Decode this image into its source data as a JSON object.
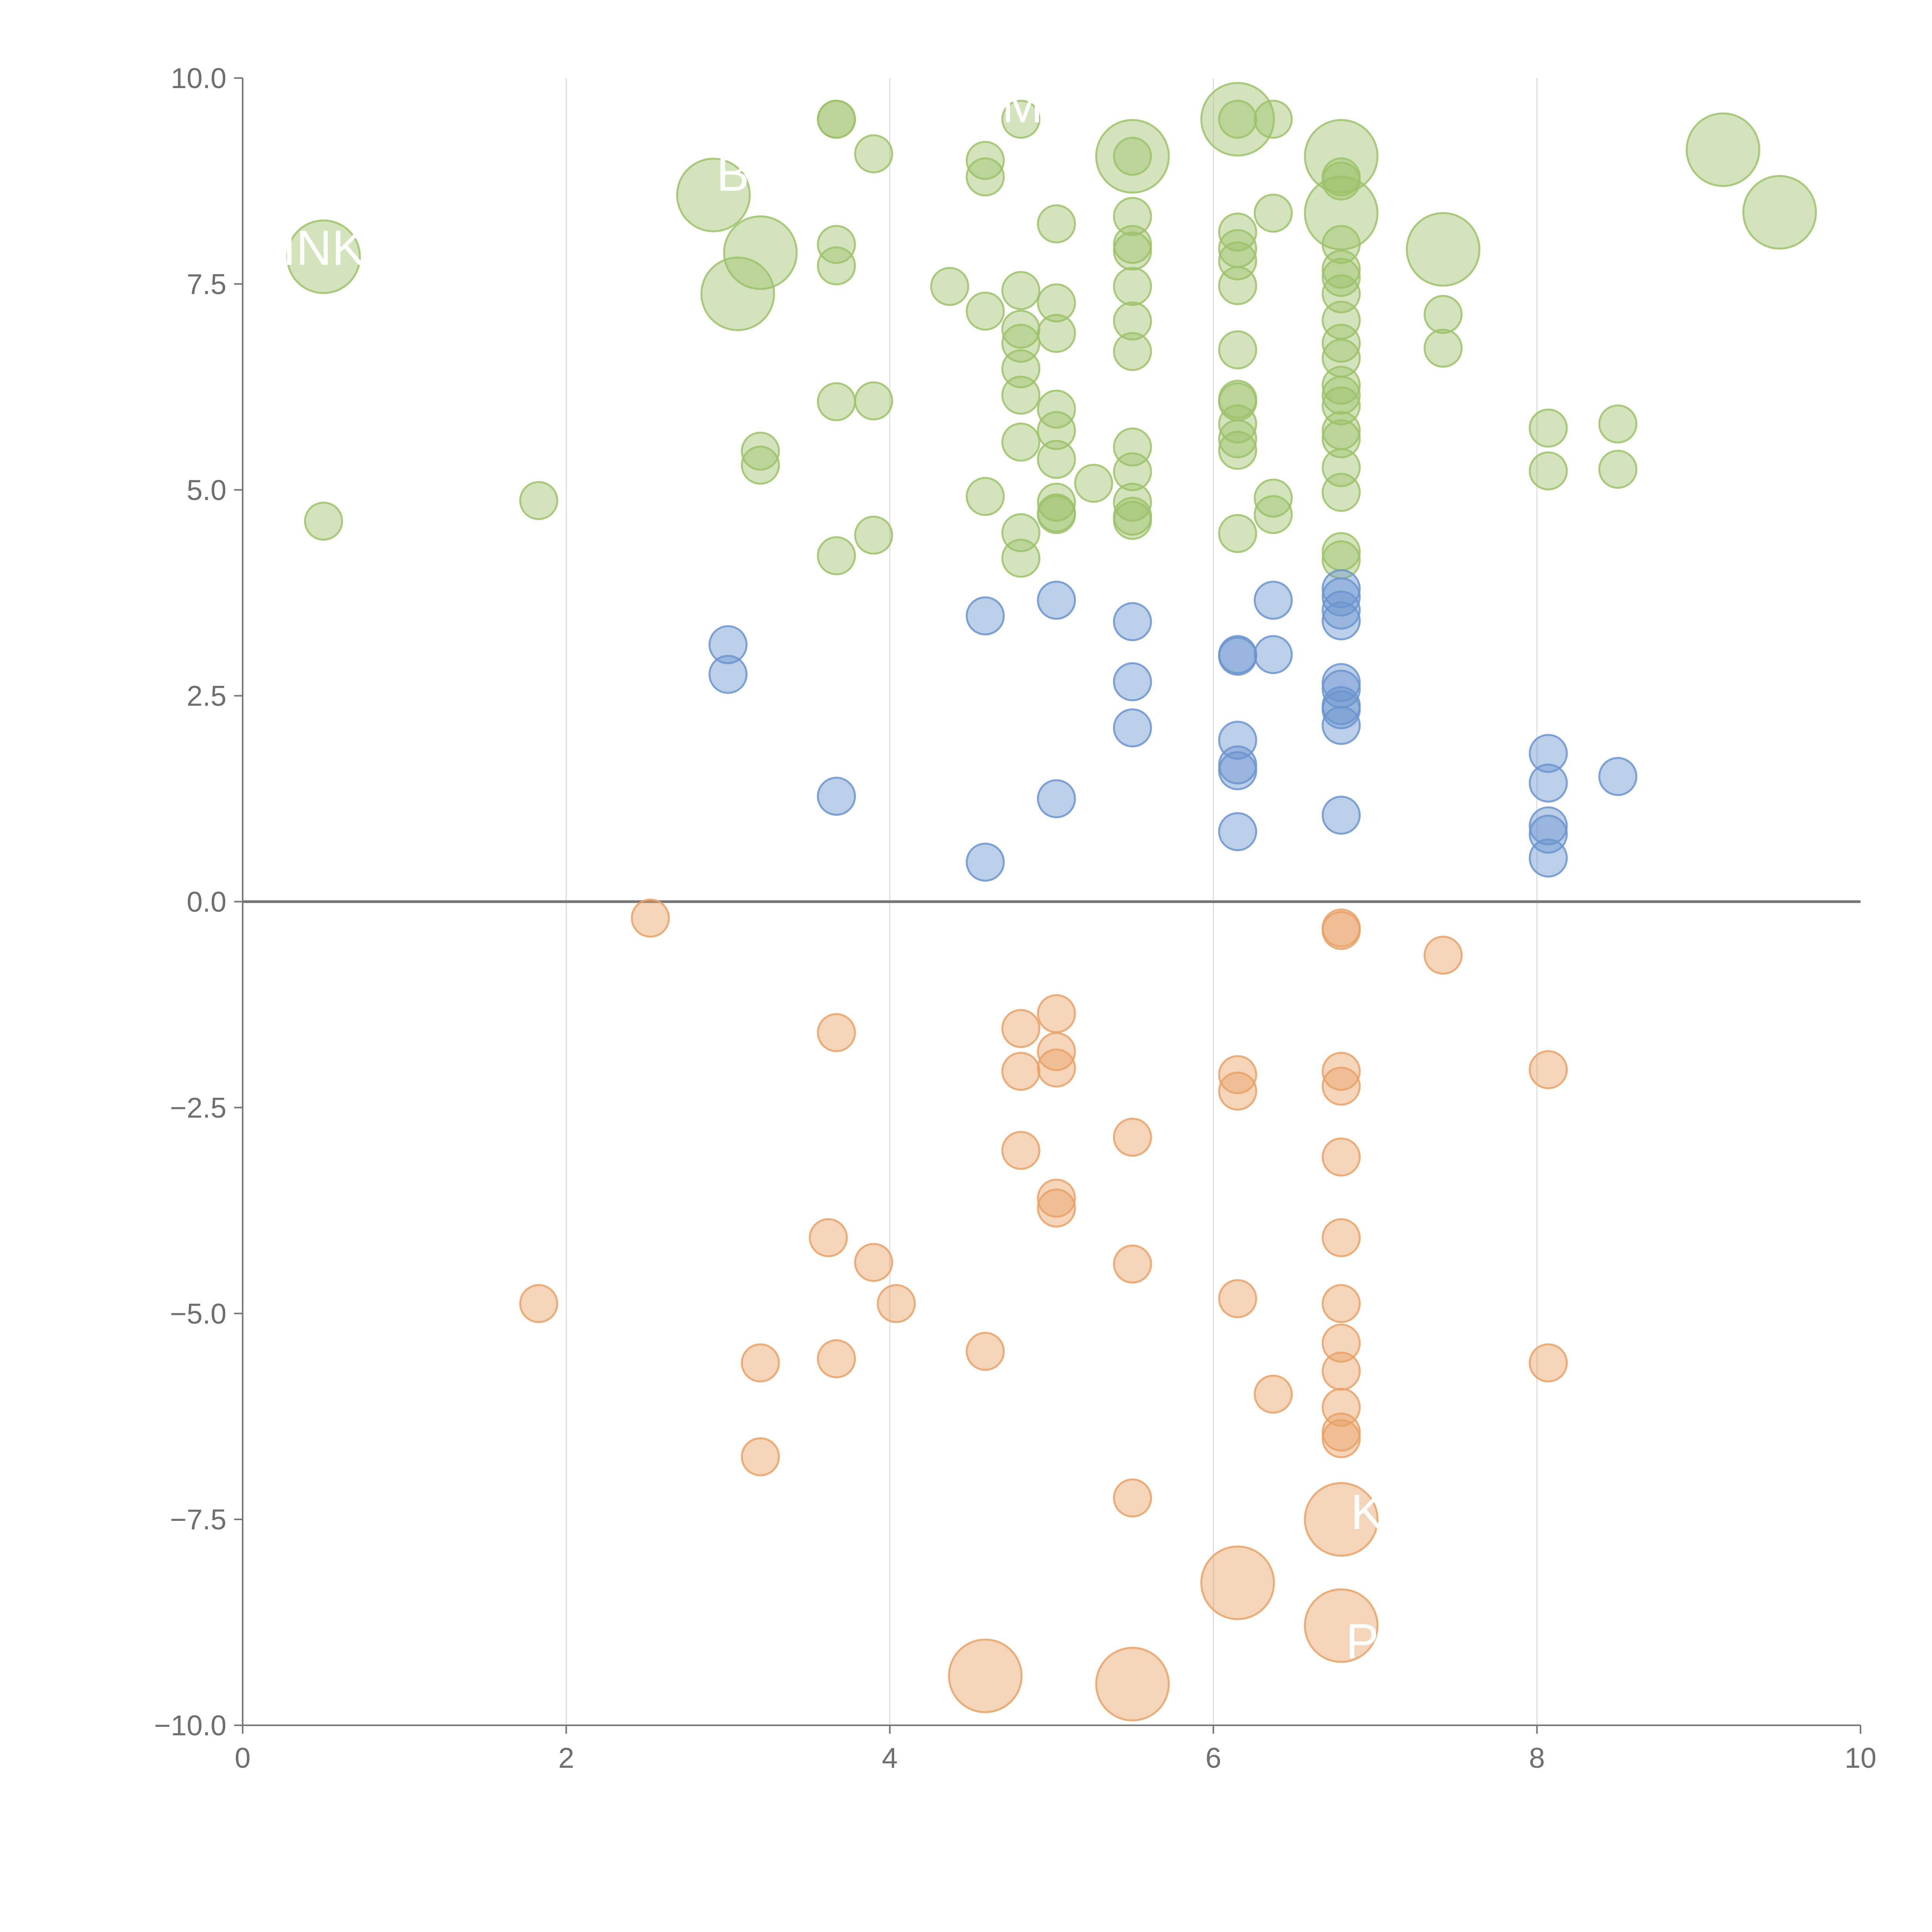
{
  "chart_data": {
    "type": "scatter",
    "title": "",
    "xlabel": "",
    "ylabel": "",
    "xlim": [
      0,
      10
    ],
    "ylim": [
      -10,
      10
    ],
    "x_ticks": [
      0,
      2,
      4,
      6,
      8,
      10
    ],
    "x_tick_labels": [
      "0",
      "2",
      "4",
      "6",
      "8",
      "10"
    ],
    "y_ticks": [
      10,
      7.5,
      5,
      2.5,
      0,
      -2.5,
      -5,
      -7.5,
      -10
    ],
    "y_tick_labels": [
      "10.0",
      "7.5",
      "5.0",
      "2.5",
      "0.0",
      "−2.5",
      "−5.0",
      "−7.5",
      "−10.0"
    ],
    "vertical_grid": true,
    "horizontal_grid": false,
    "zero_line": true,
    "colors": {
      "green": "#9dc26a",
      "blue": "#6b94cf",
      "orange": "#e9a167",
      "axis": "#777777",
      "grid": "#dddddd"
    },
    "series": [
      {
        "name": "green",
        "color": "#9dc26a",
        "points": [
          {
            "x": 3.67,
            "y": 9.5,
            "size": 1
          },
          {
            "x": 3.67,
            "y": 9.5,
            "size": 1
          },
          {
            "x": 4.81,
            "y": 9.5,
            "size": 1
          },
          {
            "x": 3.9,
            "y": 9.08,
            "size": 1
          },
          {
            "x": 4.59,
            "y": 9.0,
            "size": 1
          },
          {
            "x": 4.59,
            "y": 8.8,
            "size": 1
          },
          {
            "x": 5.5,
            "y": 9.05,
            "size": 3
          },
          {
            "x": 5.5,
            "y": 9.05,
            "size": 1
          },
          {
            "x": 6.15,
            "y": 9.5,
            "size": 3
          },
          {
            "x": 6.15,
            "y": 9.5,
            "size": 1
          },
          {
            "x": 6.37,
            "y": 9.5,
            "size": 1
          },
          {
            "x": 6.79,
            "y": 9.05,
            "size": 3
          },
          {
            "x": 6.79,
            "y": 8.36,
            "size": 3
          },
          {
            "x": 6.79,
            "y": 8.8,
            "size": 1
          },
          {
            "x": 6.79,
            "y": 8.75,
            "size": 1
          },
          {
            "x": 7.42,
            "y": 7.92,
            "size": 3
          },
          {
            "x": 9.15,
            "y": 9.13,
            "size": 3
          },
          {
            "x": 9.5,
            "y": 8.37,
            "size": 3
          },
          {
            "x": 0.5,
            "y": 7.83,
            "size": 3
          },
          {
            "x": 2.91,
            "y": 8.58,
            "size": 3
          },
          {
            "x": 3.2,
            "y": 7.88,
            "size": 3
          },
          {
            "x": 3.06,
            "y": 7.38,
            "size": 3
          },
          {
            "x": 3.67,
            "y": 7.98,
            "size": 1
          },
          {
            "x": 3.67,
            "y": 7.72,
            "size": 1
          },
          {
            "x": 5.03,
            "y": 8.23,
            "size": 1
          },
          {
            "x": 5.5,
            "y": 8.32,
            "size": 1
          },
          {
            "x": 5.5,
            "y": 7.98,
            "size": 1
          },
          {
            "x": 5.5,
            "y": 7.9,
            "size": 1
          },
          {
            "x": 6.15,
            "y": 8.13,
            "size": 1
          },
          {
            "x": 6.15,
            "y": 7.93,
            "size": 1
          },
          {
            "x": 6.15,
            "y": 7.78,
            "size": 1
          },
          {
            "x": 6.37,
            "y": 8.36,
            "size": 1
          },
          {
            "x": 6.79,
            "y": 7.98,
            "size": 1
          },
          {
            "x": 6.79,
            "y": 7.68,
            "size": 1
          },
          {
            "x": 6.79,
            "y": 7.58,
            "size": 1
          },
          {
            "x": 6.79,
            "y": 7.38,
            "size": 1
          },
          {
            "x": 6.79,
            "y": 7.06,
            "size": 1
          },
          {
            "x": 6.79,
            "y": 6.78,
            "size": 1
          },
          {
            "x": 6.79,
            "y": 6.6,
            "size": 1
          },
          {
            "x": 6.79,
            "y": 6.27,
            "size": 1
          },
          {
            "x": 6.79,
            "y": 6.15,
            "size": 1
          },
          {
            "x": 6.79,
            "y": 6.02,
            "size": 1
          },
          {
            "x": 6.79,
            "y": 5.72,
            "size": 1
          },
          {
            "x": 6.79,
            "y": 5.62,
            "size": 1
          },
          {
            "x": 6.79,
            "y": 5.27,
            "size": 1
          },
          {
            "x": 6.79,
            "y": 4.97,
            "size": 1
          },
          {
            "x": 6.79,
            "y": 4.25,
            "size": 1
          },
          {
            "x": 6.79,
            "y": 4.15,
            "size": 1
          },
          {
            "x": 4.37,
            "y": 7.47,
            "size": 1
          },
          {
            "x": 4.59,
            "y": 7.17,
            "size": 1
          },
          {
            "x": 4.81,
            "y": 7.42,
            "size": 1
          },
          {
            "x": 4.81,
            "y": 6.95,
            "size": 1
          },
          {
            "x": 4.81,
            "y": 6.78,
            "size": 1
          },
          {
            "x": 4.81,
            "y": 6.47,
            "size": 1
          },
          {
            "x": 4.81,
            "y": 6.15,
            "size": 1
          },
          {
            "x": 4.81,
            "y": 5.58,
            "size": 1
          },
          {
            "x": 4.81,
            "y": 4.48,
            "size": 1
          },
          {
            "x": 4.81,
            "y": 4.17,
            "size": 1
          },
          {
            "x": 5.03,
            "y": 7.27,
            "size": 1
          },
          {
            "x": 5.03,
            "y": 6.9,
            "size": 1
          },
          {
            "x": 5.03,
            "y": 5.98,
            "size": 1
          },
          {
            "x": 5.03,
            "y": 5.72,
            "size": 1
          },
          {
            "x": 5.03,
            "y": 5.37,
            "size": 1
          },
          {
            "x": 5.03,
            "y": 4.85,
            "size": 1
          },
          {
            "x": 5.03,
            "y": 4.72,
            "size": 1
          },
          {
            "x": 5.03,
            "y": 4.7,
            "size": 1
          },
          {
            "x": 5.26,
            "y": 5.08,
            "size": 1
          },
          {
            "x": 5.5,
            "y": 7.47,
            "size": 1
          },
          {
            "x": 5.5,
            "y": 7.05,
            "size": 1
          },
          {
            "x": 5.5,
            "y": 6.68,
            "size": 1
          },
          {
            "x": 5.5,
            "y": 5.52,
            "size": 1
          },
          {
            "x": 5.5,
            "y": 5.22,
            "size": 1
          },
          {
            "x": 5.5,
            "y": 4.85,
            "size": 1
          },
          {
            "x": 5.5,
            "y": 4.68,
            "size": 1
          },
          {
            "x": 5.5,
            "y": 4.63,
            "size": 1
          },
          {
            "x": 6.15,
            "y": 7.48,
            "size": 1
          },
          {
            "x": 6.15,
            "y": 6.7,
            "size": 1
          },
          {
            "x": 6.15,
            "y": 6.1,
            "size": 1
          },
          {
            "x": 6.15,
            "y": 6.07,
            "size": 1
          },
          {
            "x": 6.15,
            "y": 5.8,
            "size": 1
          },
          {
            "x": 6.15,
            "y": 5.62,
            "size": 1
          },
          {
            "x": 6.15,
            "y": 5.48,
            "size": 1
          },
          {
            "x": 6.15,
            "y": 4.47,
            "size": 1
          },
          {
            "x": 6.37,
            "y": 4.9,
            "size": 1
          },
          {
            "x": 6.37,
            "y": 4.7,
            "size": 1
          },
          {
            "x": 7.42,
            "y": 7.13,
            "size": 1
          },
          {
            "x": 7.42,
            "y": 6.72,
            "size": 1
          },
          {
            "x": 3.67,
            "y": 6.07,
            "size": 1
          },
          {
            "x": 3.9,
            "y": 6.08,
            "size": 1
          },
          {
            "x": 3.2,
            "y": 5.47,
            "size": 1
          },
          {
            "x": 3.2,
            "y": 5.3,
            "size": 1
          },
          {
            "x": 4.59,
            "y": 4.92,
            "size": 1
          },
          {
            "x": 3.9,
            "y": 4.45,
            "size": 1
          },
          {
            "x": 3.67,
            "y": 4.2,
            "size": 1
          },
          {
            "x": 1.83,
            "y": 4.87,
            "size": 1
          },
          {
            "x": 0.5,
            "y": 4.62,
            "size": 1
          },
          {
            "x": 8.07,
            "y": 5.75,
            "size": 1
          },
          {
            "x": 8.07,
            "y": 5.23,
            "size": 1
          },
          {
            "x": 8.5,
            "y": 5.8,
            "size": 1
          },
          {
            "x": 8.5,
            "y": 5.25,
            "size": 1
          }
        ]
      },
      {
        "name": "blue",
        "color": "#6b94cf",
        "points": [
          {
            "x": 3.0,
            "y": 3.12,
            "size": 1
          },
          {
            "x": 3.0,
            "y": 2.76,
            "size": 1
          },
          {
            "x": 4.59,
            "y": 3.47,
            "size": 1
          },
          {
            "x": 5.03,
            "y": 3.66,
            "size": 1
          },
          {
            "x": 5.5,
            "y": 3.4,
            "size": 1
          },
          {
            "x": 5.5,
            "y": 2.67,
            "size": 1
          },
          {
            "x": 5.5,
            "y": 2.11,
            "size": 1
          },
          {
            "x": 6.15,
            "y": 3.0,
            "size": 1
          },
          {
            "x": 6.15,
            "y": 2.98,
            "size": 1
          },
          {
            "x": 6.15,
            "y": 1.96,
            "size": 1
          },
          {
            "x": 6.15,
            "y": 1.66,
            "size": 1
          },
          {
            "x": 6.15,
            "y": 1.59,
            "size": 1
          },
          {
            "x": 6.15,
            "y": 0.85,
            "size": 1
          },
          {
            "x": 6.37,
            "y": 3.66,
            "size": 1
          },
          {
            "x": 6.37,
            "y": 3.0,
            "size": 1
          },
          {
            "x": 6.79,
            "y": 3.8,
            "size": 1
          },
          {
            "x": 6.79,
            "y": 3.7,
            "size": 1
          },
          {
            "x": 6.79,
            "y": 3.54,
            "size": 1
          },
          {
            "x": 6.79,
            "y": 3.41,
            "size": 1
          },
          {
            "x": 6.79,
            "y": 2.66,
            "size": 1
          },
          {
            "x": 6.79,
            "y": 2.58,
            "size": 1
          },
          {
            "x": 6.79,
            "y": 2.38,
            "size": 1
          },
          {
            "x": 6.79,
            "y": 2.33,
            "size": 1
          },
          {
            "x": 6.79,
            "y": 2.14,
            "size": 1
          },
          {
            "x": 6.79,
            "y": 1.05,
            "size": 1
          },
          {
            "x": 3.67,
            "y": 1.28,
            "size": 1
          },
          {
            "x": 5.03,
            "y": 1.25,
            "size": 1
          },
          {
            "x": 4.59,
            "y": 0.48,
            "size": 1
          },
          {
            "x": 8.07,
            "y": 1.8,
            "size": 1
          },
          {
            "x": 8.07,
            "y": 1.44,
            "size": 1
          },
          {
            "x": 8.07,
            "y": 0.92,
            "size": 1
          },
          {
            "x": 8.07,
            "y": 0.82,
            "size": 1
          },
          {
            "x": 8.07,
            "y": 0.53,
            "size": 1
          },
          {
            "x": 8.5,
            "y": 1.52,
            "size": 1
          }
        ]
      },
      {
        "name": "orange",
        "color": "#e9a167",
        "points": [
          {
            "x": 2.52,
            "y": -0.2,
            "size": 1
          },
          {
            "x": 6.79,
            "y": -0.32,
            "size": 1
          },
          {
            "x": 6.79,
            "y": -0.35,
            "size": 1
          },
          {
            "x": 7.42,
            "y": -0.65,
            "size": 1
          },
          {
            "x": 3.67,
            "y": -1.59,
            "size": 1
          },
          {
            "x": 4.81,
            "y": -1.54,
            "size": 1
          },
          {
            "x": 4.81,
            "y": -2.06,
            "size": 1
          },
          {
            "x": 4.81,
            "y": -3.02,
            "size": 1
          },
          {
            "x": 5.03,
            "y": -1.36,
            "size": 1
          },
          {
            "x": 5.03,
            "y": -1.82,
            "size": 1
          },
          {
            "x": 5.03,
            "y": -2.02,
            "size": 1
          },
          {
            "x": 5.03,
            "y": -3.6,
            "size": 1
          },
          {
            "x": 5.03,
            "y": -3.72,
            "size": 1
          },
          {
            "x": 6.15,
            "y": -2.1,
            "size": 1
          },
          {
            "x": 6.15,
            "y": -2.3,
            "size": 1
          },
          {
            "x": 6.79,
            "y": -2.06,
            "size": 1
          },
          {
            "x": 6.79,
            "y": -2.24,
            "size": 1
          },
          {
            "x": 6.79,
            "y": -3.1,
            "size": 1
          },
          {
            "x": 6.79,
            "y": -4.08,
            "size": 1
          },
          {
            "x": 6.79,
            "y": -4.88,
            "size": 1
          },
          {
            "x": 6.79,
            "y": -5.36,
            "size": 1
          },
          {
            "x": 6.79,
            "y": -5.7,
            "size": 1
          },
          {
            "x": 6.79,
            "y": -6.14,
            "size": 1
          },
          {
            "x": 6.79,
            "y": -6.44,
            "size": 1
          },
          {
            "x": 6.79,
            "y": -6.52,
            "size": 1
          },
          {
            "x": 8.07,
            "y": -2.04,
            "size": 1
          },
          {
            "x": 8.07,
            "y": -5.6,
            "size": 1
          },
          {
            "x": 5.5,
            "y": -2.86,
            "size": 1
          },
          {
            "x": 5.5,
            "y": -4.4,
            "size": 1
          },
          {
            "x": 5.5,
            "y": -7.24,
            "size": 1
          },
          {
            "x": 3.62,
            "y": -4.08,
            "size": 1
          },
          {
            "x": 3.9,
            "y": -4.38,
            "size": 1
          },
          {
            "x": 4.04,
            "y": -4.88,
            "size": 1
          },
          {
            "x": 1.83,
            "y": -4.88,
            "size": 1
          },
          {
            "x": 3.2,
            "y": -5.6,
            "size": 1
          },
          {
            "x": 3.2,
            "y": -6.74,
            "size": 1
          },
          {
            "x": 3.67,
            "y": -5.55,
            "size": 1
          },
          {
            "x": 4.59,
            "y": -5.46,
            "size": 1
          },
          {
            "x": 6.15,
            "y": -4.82,
            "size": 1
          },
          {
            "x": 6.37,
            "y": -5.98,
            "size": 1
          },
          {
            "x": 6.79,
            "y": -7.5,
            "size": 3
          },
          {
            "x": 6.15,
            "y": -8.27,
            "size": 3
          },
          {
            "x": 6.79,
            "y": -8.79,
            "size": 3
          },
          {
            "x": 4.59,
            "y": -9.4,
            "size": 3
          },
          {
            "x": 5.5,
            "y": -9.5,
            "size": 3
          }
        ]
      }
    ],
    "annotations": [
      {
        "text": "INK",
        "x": 0.5,
        "y": 7.92,
        "color": "#ffffff"
      },
      {
        "text": "B",
        "x": 3.03,
        "y": 8.82,
        "color": "#ffffff"
      },
      {
        "text": "M",
        "x": 4.82,
        "y": 9.65,
        "color": "#ffffff"
      },
      {
        "text": "K",
        "x": 6.95,
        "y": -7.43,
        "color": "#ffffff"
      },
      {
        "text": "P",
        "x": 6.92,
        "y": -9.0,
        "color": "#ffffff"
      }
    ]
  }
}
